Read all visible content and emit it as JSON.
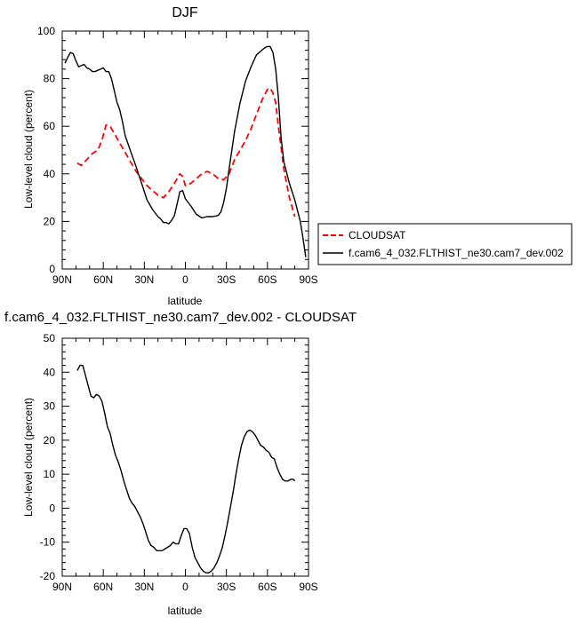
{
  "chart_data": [
    {
      "type": "line",
      "title": "DJF",
      "xlabel": "latitude",
      "ylabel": "Low-level cloud (percent)",
      "xlim": [
        90,
        -90
      ],
      "ylim": [
        0,
        100
      ],
      "xticks": [
        90,
        60,
        30,
        0,
        -30,
        -60,
        -90
      ],
      "xtick_labels": [
        "90N",
        "60N",
        "30N",
        "0",
        "30S",
        "60S",
        "90S"
      ],
      "yticks": [
        0,
        20,
        40,
        60,
        80,
        100
      ],
      "ytick_labels": [
        "0",
        "20",
        "40",
        "60",
        "80",
        "100"
      ],
      "legend": "outside-right",
      "series": [
        {
          "name": "CLOUDSAT",
          "color": "#ff0000",
          "dash": "dashed",
          "x": [
            79,
            76,
            72,
            68,
            64,
            61,
            58,
            55,
            52,
            48,
            44,
            40,
            36,
            32,
            28,
            24,
            20,
            16,
            12,
            8,
            4,
            2,
            0,
            -4,
            -8,
            -12,
            -16,
            -20,
            -24,
            -28,
            -32,
            -36,
            -40,
            -44,
            -48,
            -52,
            -56,
            -60,
            -62,
            -64,
            -66,
            -68,
            -72,
            -76,
            -80
          ],
          "y": [
            44.5,
            43.5,
            46,
            48.5,
            50,
            54,
            60.5,
            60,
            57,
            53,
            49,
            45,
            41,
            38,
            35,
            33,
            31,
            30,
            32.5,
            36,
            40,
            39,
            35,
            36,
            38,
            40,
            41,
            40,
            38,
            37.5,
            40,
            46,
            50,
            54,
            59,
            65,
            71,
            75.5,
            76,
            74,
            70,
            60,
            42,
            30,
            22
          ]
        },
        {
          "name": "f.cam6_4_032.FLTHIST_ne30.cam7_dev.002",
          "color": "#000000",
          "dash": "solid",
          "x": [
            88,
            86,
            84,
            82,
            80,
            78,
            76,
            74,
            72,
            70,
            68,
            66,
            64,
            62,
            60,
            58,
            56,
            54,
            52,
            50,
            48,
            46,
            44,
            40,
            36,
            32,
            28,
            24,
            20,
            18,
            16,
            14,
            12,
            10,
            8,
            6,
            4,
            2,
            0,
            -2,
            -4,
            -8,
            -12,
            -16,
            -20,
            -24,
            -26,
            -28,
            -30,
            -32,
            -34,
            -36,
            -40,
            -44,
            -48,
            -52,
            -56,
            -58,
            -60,
            -62,
            -64,
            -66,
            -68,
            -70,
            -72,
            -76,
            -80,
            -84,
            -86,
            -88
          ],
          "y": [
            86.5,
            89,
            91,
            90.5,
            87.5,
            85,
            85.5,
            86,
            84.5,
            84,
            83,
            83,
            83.5,
            84,
            84.5,
            83,
            83,
            80,
            75,
            70,
            67,
            62,
            56,
            49.5,
            43,
            36,
            29,
            25,
            22,
            21,
            19.5,
            19.5,
            19,
            20.5,
            22.5,
            27.5,
            32.5,
            33,
            29.5,
            28,
            26.5,
            23,
            21.5,
            22,
            22,
            22.5,
            24,
            28,
            34,
            42,
            50,
            58,
            70,
            79,
            85,
            90,
            92,
            93,
            93.5,
            93.5,
            91,
            84,
            72,
            55,
            45,
            36,
            29,
            20,
            13,
            5
          ]
        }
      ]
    },
    {
      "type": "line",
      "title": "f.cam6_4_032.FLTHIST_ne30.cam7_dev.002 - CLOUDSAT",
      "xlabel": "latitude",
      "ylabel": "Low-level cloud (percent)",
      "xlim": [
        90,
        -90
      ],
      "ylim": [
        -20,
        50
      ],
      "xticks": [
        90,
        60,
        30,
        0,
        -30,
        -60,
        -90
      ],
      "xtick_labels": [
        "90N",
        "60N",
        "30N",
        "0",
        "30S",
        "60S",
        "90S"
      ],
      "yticks": [
        -20,
        -10,
        0,
        10,
        20,
        30,
        40,
        50
      ],
      "ytick_labels": [
        "-20",
        "-10",
        "0",
        "10",
        "20",
        "30",
        "40",
        "50"
      ],
      "series": [
        {
          "color": "#000000",
          "dash": "solid",
          "x": [
            79,
            77,
            75,
            73,
            71,
            69,
            67,
            65,
            63,
            61,
            59,
            57,
            55,
            53,
            51,
            49,
            47,
            45,
            43,
            41,
            39,
            37,
            35,
            33,
            31,
            29,
            27,
            25,
            23,
            21,
            19,
            17,
            15,
            13,
            11,
            9,
            7,
            5,
            3,
            1,
            -1,
            -3,
            -5,
            -7,
            -9,
            -11,
            -13,
            -15,
            -17,
            -19,
            -21,
            -23,
            -25,
            -27,
            -29,
            -31,
            -33,
            -35,
            -37,
            -39,
            -41,
            -43,
            -45,
            -47,
            -49,
            -51,
            -53,
            -55,
            -57,
            -59,
            -61,
            -63,
            -65,
            -67,
            -69,
            -71,
            -73,
            -75,
            -77,
            -79,
            -80
          ],
          "y": [
            40.5,
            42,
            42,
            39,
            36,
            33,
            32.5,
            33.5,
            33,
            31.5,
            28,
            24,
            22,
            18.5,
            15.5,
            13.5,
            11,
            8,
            5.5,
            3,
            1.5,
            0.5,
            -1,
            -2.5,
            -4.5,
            -7,
            -9.5,
            -11,
            -11.5,
            -12.5,
            -12.5,
            -12.5,
            -12,
            -11.5,
            -11,
            -10,
            -10.5,
            -10.5,
            -8,
            -6,
            -6,
            -7.5,
            -11.5,
            -14.5,
            -16,
            -17.5,
            -18.5,
            -19,
            -19,
            -18.5,
            -17.5,
            -16,
            -14,
            -11.5,
            -8,
            -4,
            0.5,
            5,
            10,
            14.5,
            18.5,
            21,
            22.5,
            23,
            22.5,
            21.5,
            20,
            18.5,
            18,
            17,
            16.5,
            15,
            14.5,
            12,
            10,
            8.5,
            8,
            8,
            8.5,
            8.5,
            8
          ]
        }
      ]
    }
  ]
}
